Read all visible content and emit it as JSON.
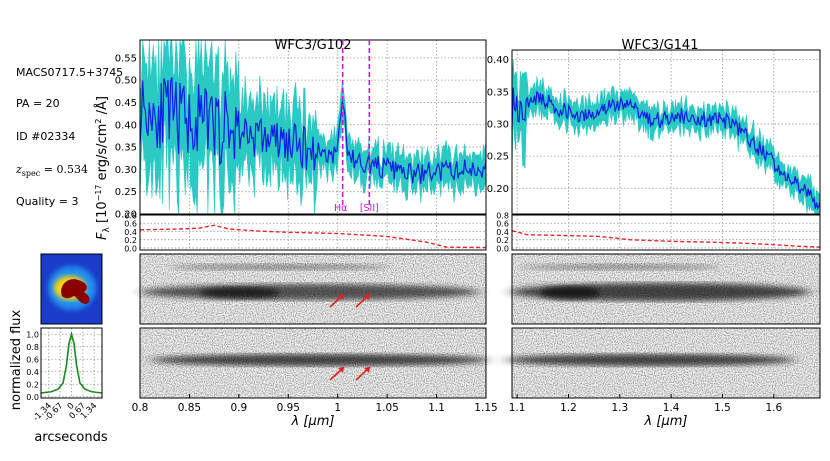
{
  "meta": {
    "object": "MACS0717.5+3745",
    "pa": "PA = 20",
    "id": "ID #02334",
    "zspec_label": "z",
    "zspec_sub": "spec",
    "zspec_value": " = 0.534",
    "quality": "Quality = 3"
  },
  "colors": {
    "flux": "#0a1ee6",
    "error_band": "#1fc7c0",
    "contam": "#e8262a",
    "line_marker": "#c71ac9",
    "profile": "#1a8a1a",
    "arrow": "#e02020"
  },
  "chart_data": [
    {
      "type": "line",
      "name": "g102-spectrum",
      "title": "WFC3/G102",
      "xlim": [
        0.8,
        1.15
      ],
      "ylim": [
        0.2,
        0.59
      ],
      "yticks": [
        "0.20",
        "0.25",
        "0.30",
        "0.35",
        "0.40",
        "0.45",
        "0.50",
        "0.55"
      ],
      "ylabel": "F_λ [10^-17 erg/s/cm^2/Å]",
      "series": [
        {
          "name": "flux",
          "values": "noisy, declining from ~0.44 at 0.80 µm to ~0.29 at 1.12 µm with emission peak ~0.46 at 1.005 µm"
        }
      ],
      "lines": [
        {
          "label": "Hα",
          "x": 1.005
        },
        {
          "label": "[SII]",
          "x": 1.032
        }
      ]
    },
    {
      "type": "line",
      "name": "g141-spectrum",
      "title": "WFC3/G141",
      "xlim": [
        1.09,
        1.69
      ],
      "ylim": [
        0.16,
        0.415
      ],
      "yticks": [
        "0.20",
        "0.25",
        "0.30",
        "0.35",
        "0.40"
      ],
      "series": [
        {
          "name": "flux",
          "values": "~0.31-0.33 from 1.10 to 1.40 µm, declining to ~0.19 at 1.67 µm"
        }
      ]
    },
    {
      "type": "line",
      "name": "g102-contamination",
      "xlim": [
        0.8,
        1.15
      ],
      "ylim": [
        -0.05,
        0.8
      ],
      "yticks": [
        "0.0",
        "0.2",
        "0.4",
        "0.6",
        "0.8"
      ],
      "series": [
        {
          "name": "contamination",
          "x": [
            0.8,
            0.84,
            0.86,
            0.875,
            0.89,
            0.92,
            0.95,
            1.0,
            1.05,
            1.09,
            1.11,
            1.15
          ],
          "values": [
            0.44,
            0.46,
            0.48,
            0.55,
            0.46,
            0.41,
            0.38,
            0.35,
            0.28,
            0.14,
            0.02,
            0.01
          ]
        }
      ]
    },
    {
      "type": "line",
      "name": "g141-contamination",
      "xlim": [
        1.09,
        1.69
      ],
      "ylim": [
        -0.05,
        0.8
      ],
      "yticks": [
        "0.0",
        "0.2",
        "0.4",
        "0.6",
        "0.8"
      ],
      "series": [
        {
          "name": "contamination",
          "x": [
            1.09,
            1.12,
            1.2,
            1.26,
            1.32,
            1.4,
            1.48,
            1.55,
            1.6,
            1.65,
            1.69
          ],
          "values": [
            0.42,
            0.32,
            0.3,
            0.28,
            0.2,
            0.16,
            0.14,
            0.11,
            0.08,
            0.04,
            0.02
          ]
        }
      ]
    },
    {
      "type": "line",
      "name": "spatial-profile",
      "xlabel": "arcseconds",
      "ylabel": "normalized flux",
      "xticks": [
        "-1.34",
        "-0.67",
        "0",
        "0.67",
        "1.34"
      ],
      "yticks": [
        "0.0",
        "0.2",
        "0.4",
        "0.6",
        "0.8",
        "1.0"
      ],
      "xlim": [
        -1.8,
        1.8
      ],
      "ylim": [
        -0.02,
        1.1
      ],
      "series": [
        {
          "name": "profile",
          "x": [
            -1.8,
            -1.2,
            -0.8,
            -0.5,
            -0.3,
            -0.15,
            0,
            0.15,
            0.3,
            0.5,
            0.8,
            1.2,
            1.8
          ],
          "values": [
            0.06,
            0.08,
            0.12,
            0.22,
            0.5,
            0.85,
            1.0,
            0.85,
            0.5,
            0.22,
            0.12,
            0.08,
            0.06
          ]
        }
      ]
    }
  ],
  "axes": {
    "g102_xticks": [
      "0.8",
      "0.85",
      "0.9",
      "0.95",
      "1",
      "1.05",
      "1.1",
      "1.15"
    ],
    "g102_xvals": [
      0.8,
      0.85,
      0.9,
      0.95,
      1.0,
      1.05,
      1.1,
      1.15
    ],
    "g141_xticks": [
      "1.1",
      "1.2",
      "1.3",
      "1.4",
      "1.5",
      "1.6"
    ],
    "g141_xvals": [
      1.1,
      1.2,
      1.3,
      1.4,
      1.5,
      1.6
    ],
    "xlabel": "λ [µm]"
  }
}
